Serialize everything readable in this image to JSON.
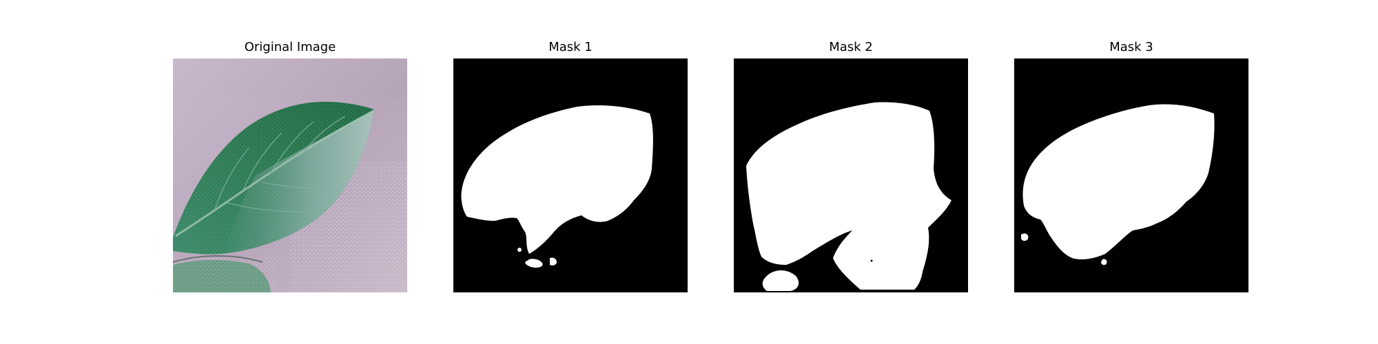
{
  "panels": [
    {
      "title": "Original Image",
      "kind": "photo-leaf"
    },
    {
      "title": "Mask 1",
      "kind": "binary-mask"
    },
    {
      "title": "Mask 2",
      "kind": "binary-mask"
    },
    {
      "title": "Mask 3",
      "kind": "binary-mask"
    }
  ],
  "colors": {
    "mask_background": "#000000",
    "mask_foreground": "#ffffff",
    "photo_background": "#c6b3c8",
    "leaf_dark": "#1f6b44",
    "leaf_mid": "#3f8f68",
    "leaf_light": "#a8c2c4"
  }
}
